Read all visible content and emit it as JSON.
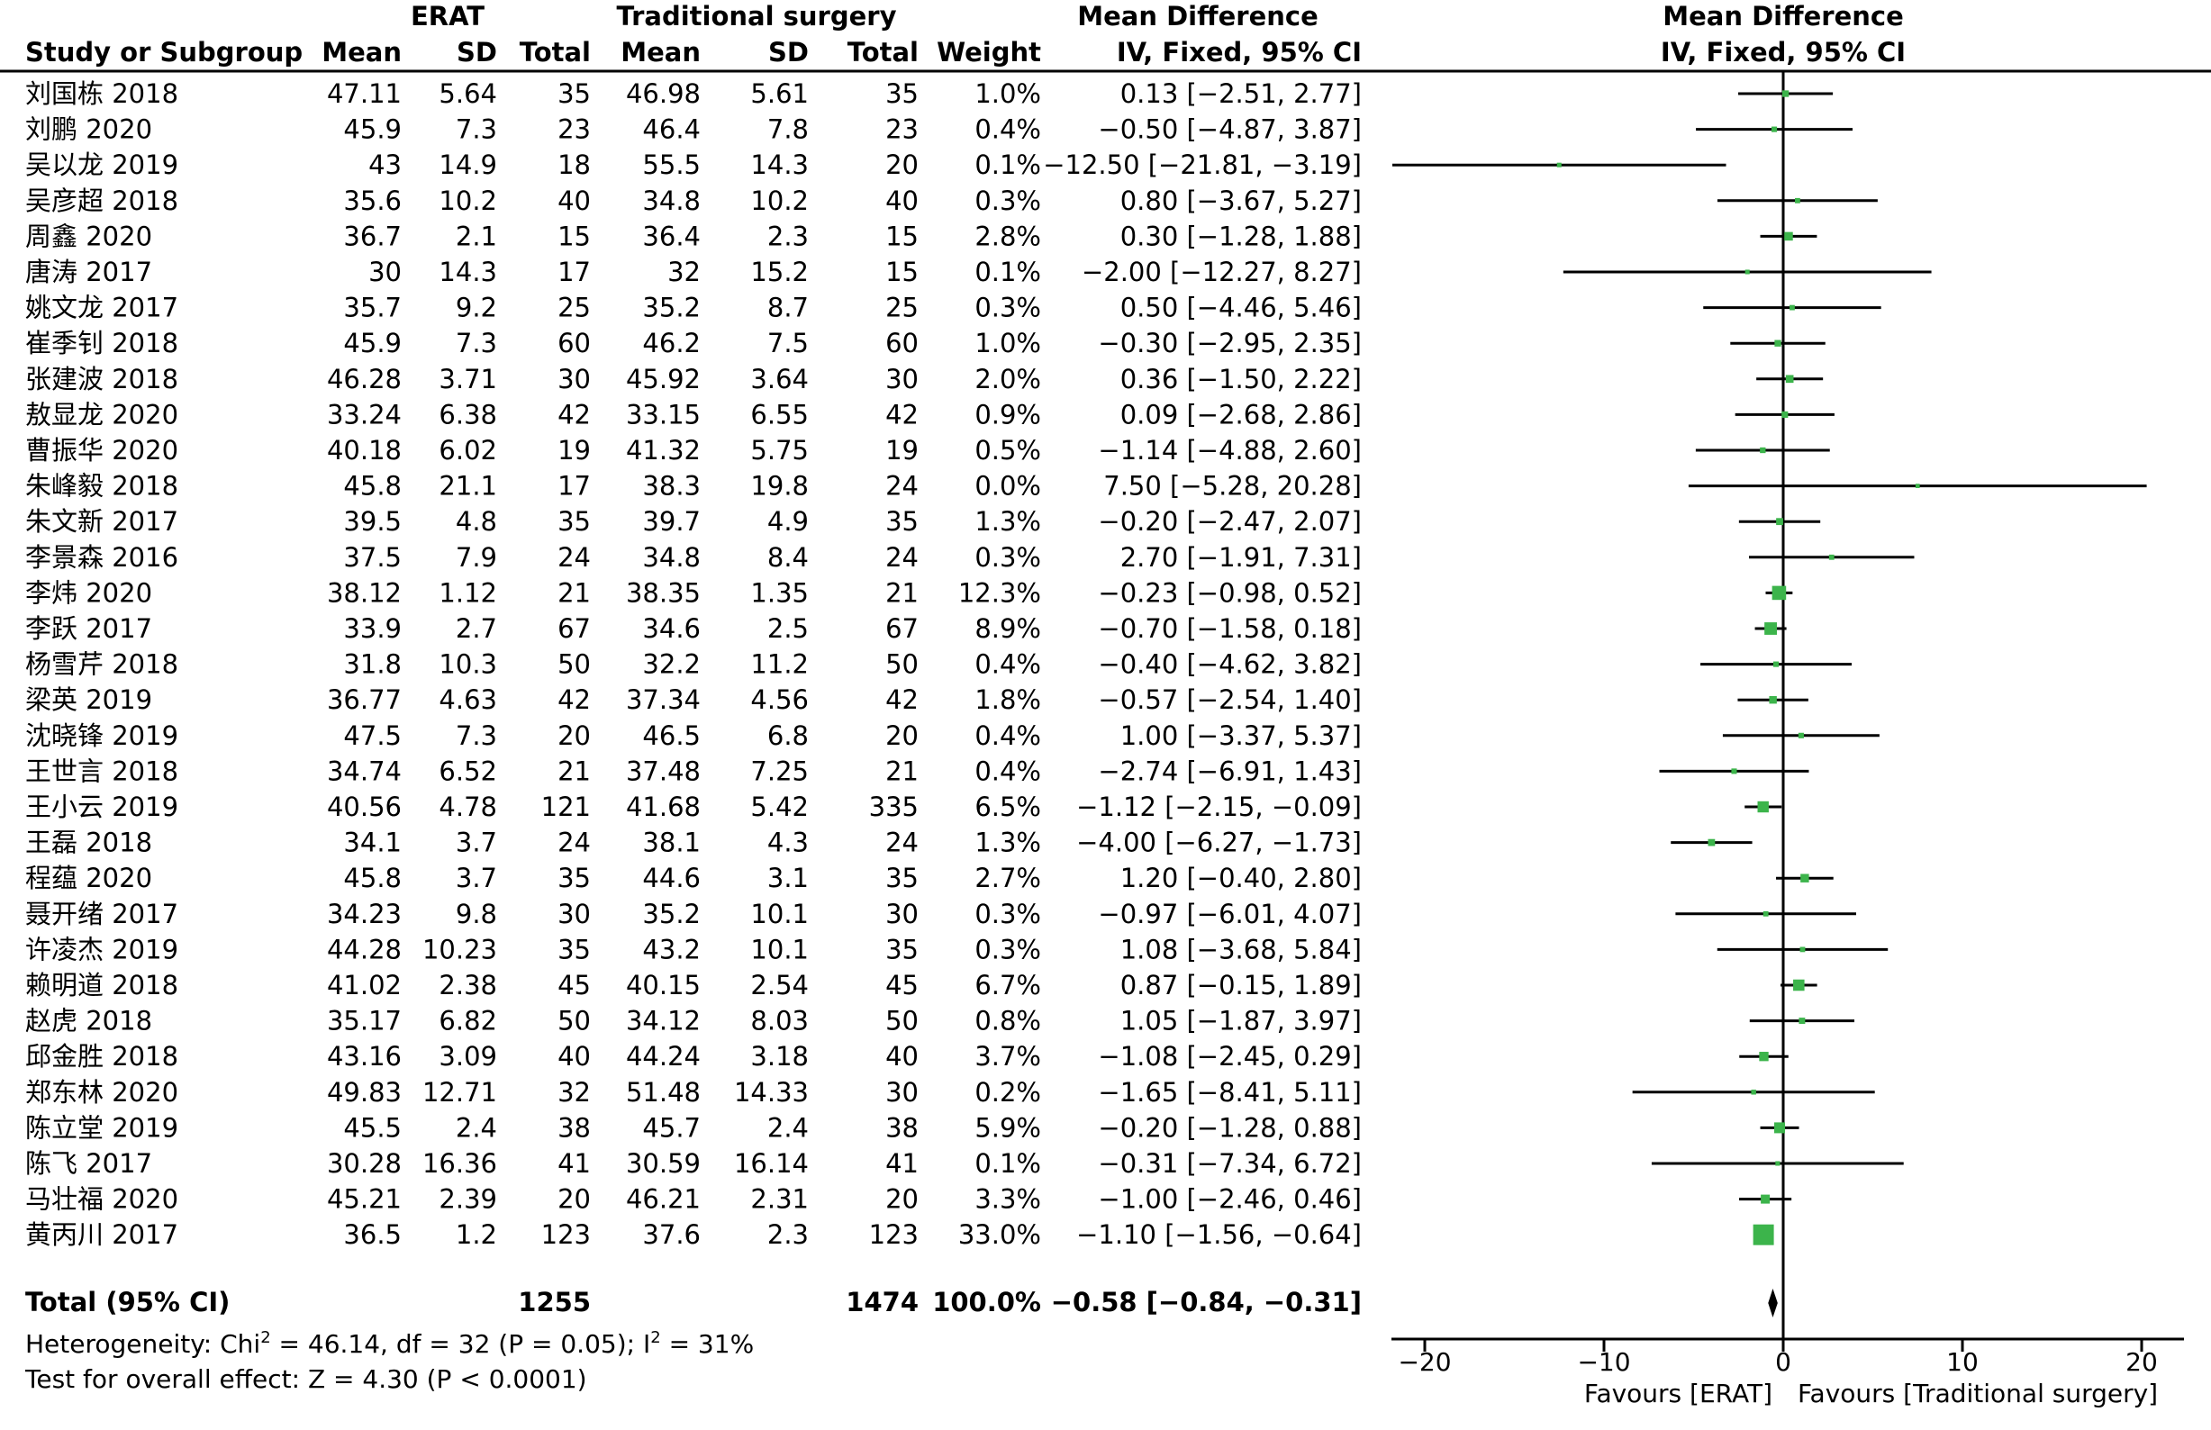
{
  "chart_data": {
    "type": "forest",
    "groups": {
      "experimental": "ERAT",
      "control": "Traditional surgery",
      "effect_measure": "Mean Difference"
    },
    "columns": {
      "study": "Study or Subgroup",
      "mean": "Mean",
      "sd": "SD",
      "total": "Total",
      "weight": "Weight",
      "method": "IV, Fixed, 95% CI"
    },
    "studies": [
      {
        "name": "刘国栋 2018",
        "e_mean": "47.11",
        "e_sd": "5.64",
        "e_total": "35",
        "c_mean": "46.98",
        "c_sd": "5.61",
        "c_total": "35",
        "weight": "1.0%",
        "ci_text": "0.13 [−2.51, 2.77]",
        "md": 0.13,
        "lo": -2.51,
        "hi": 2.77,
        "w": 1.0
      },
      {
        "name": "刘鹏 2020",
        "e_mean": "45.9",
        "e_sd": "7.3",
        "e_total": "23",
        "c_mean": "46.4",
        "c_sd": "7.8",
        "c_total": "23",
        "weight": "0.4%",
        "ci_text": "−0.50 [−4.87, 3.87]",
        "md": -0.5,
        "lo": -4.87,
        "hi": 3.87,
        "w": 0.4
      },
      {
        "name": "吴以龙 2019",
        "e_mean": "43",
        "e_sd": "14.9",
        "e_total": "18",
        "c_mean": "55.5",
        "c_sd": "14.3",
        "c_total": "20",
        "weight": "0.1%",
        "ci_text": "−12.50 [−21.81, −3.19]",
        "md": -12.5,
        "lo": -21.81,
        "hi": -3.19,
        "w": 0.1
      },
      {
        "name": "吴彦超 2018",
        "e_mean": "35.6",
        "e_sd": "10.2",
        "e_total": "40",
        "c_mean": "34.8",
        "c_sd": "10.2",
        "c_total": "40",
        "weight": "0.3%",
        "ci_text": "0.80 [−3.67, 5.27]",
        "md": 0.8,
        "lo": -3.67,
        "hi": 5.27,
        "w": 0.3
      },
      {
        "name": "周鑫 2020",
        "e_mean": "36.7",
        "e_sd": "2.1",
        "e_total": "15",
        "c_mean": "36.4",
        "c_sd": "2.3",
        "c_total": "15",
        "weight": "2.8%",
        "ci_text": "0.30 [−1.28, 1.88]",
        "md": 0.3,
        "lo": -1.28,
        "hi": 1.88,
        "w": 2.8
      },
      {
        "name": "唐涛 2017",
        "e_mean": "30",
        "e_sd": "14.3",
        "e_total": "17",
        "c_mean": "32",
        "c_sd": "15.2",
        "c_total": "15",
        "weight": "0.1%",
        "ci_text": "−2.00 [−12.27, 8.27]",
        "md": -2.0,
        "lo": -12.27,
        "hi": 8.27,
        "w": 0.1
      },
      {
        "name": "姚文龙 2017",
        "e_mean": "35.7",
        "e_sd": "9.2",
        "e_total": "25",
        "c_mean": "35.2",
        "c_sd": "8.7",
        "c_total": "25",
        "weight": "0.3%",
        "ci_text": "0.50 [−4.46, 5.46]",
        "md": 0.5,
        "lo": -4.46,
        "hi": 5.46,
        "w": 0.3
      },
      {
        "name": "崔季钊 2018",
        "e_mean": "45.9",
        "e_sd": "7.3",
        "e_total": "60",
        "c_mean": "46.2",
        "c_sd": "7.5",
        "c_total": "60",
        "weight": "1.0%",
        "ci_text": "−0.30 [−2.95, 2.35]",
        "md": -0.3,
        "lo": -2.95,
        "hi": 2.35,
        "w": 1.0
      },
      {
        "name": "张建波 2018",
        "e_mean": "46.28",
        "e_sd": "3.71",
        "e_total": "30",
        "c_mean": "45.92",
        "c_sd": "3.64",
        "c_total": "30",
        "weight": "2.0%",
        "ci_text": "0.36 [−1.50, 2.22]",
        "md": 0.36,
        "lo": -1.5,
        "hi": 2.22,
        "w": 2.0
      },
      {
        "name": "敖显龙 2020",
        "e_mean": "33.24",
        "e_sd": "6.38",
        "e_total": "42",
        "c_mean": "33.15",
        "c_sd": "6.55",
        "c_total": "42",
        "weight": "0.9%",
        "ci_text": "0.09 [−2.68, 2.86]",
        "md": 0.09,
        "lo": -2.68,
        "hi": 2.86,
        "w": 0.9
      },
      {
        "name": "曹振华 2020",
        "e_mean": "40.18",
        "e_sd": "6.02",
        "e_total": "19",
        "c_mean": "41.32",
        "c_sd": "5.75",
        "c_total": "19",
        "weight": "0.5%",
        "ci_text": "−1.14 [−4.88, 2.60]",
        "md": -1.14,
        "lo": -4.88,
        "hi": 2.6,
        "w": 0.5
      },
      {
        "name": "朱峰毅 2018",
        "e_mean": "45.8",
        "e_sd": "21.1",
        "e_total": "17",
        "c_mean": "38.3",
        "c_sd": "19.8",
        "c_total": "24",
        "weight": "0.0%",
        "ci_text": "7.50 [−5.28, 20.28]",
        "md": 7.5,
        "lo": -5.28,
        "hi": 20.28,
        "w": 0.05
      },
      {
        "name": "朱文新 2017",
        "e_mean": "39.5",
        "e_sd": "4.8",
        "e_total": "35",
        "c_mean": "39.7",
        "c_sd": "4.9",
        "c_total": "35",
        "weight": "1.3%",
        "ci_text": "−0.20 [−2.47, 2.07]",
        "md": -0.2,
        "lo": -2.47,
        "hi": 2.07,
        "w": 1.3
      },
      {
        "name": "李景森 2016",
        "e_mean": "37.5",
        "e_sd": "7.9",
        "e_total": "24",
        "c_mean": "34.8",
        "c_sd": "8.4",
        "c_total": "24",
        "weight": "0.3%",
        "ci_text": "2.70 [−1.91, 7.31]",
        "md": 2.7,
        "lo": -1.91,
        "hi": 7.31,
        "w": 0.3
      },
      {
        "name": "李炜 2020",
        "e_mean": "38.12",
        "e_sd": "1.12",
        "e_total": "21",
        "c_mean": "38.35",
        "c_sd": "1.35",
        "c_total": "21",
        "weight": "12.3%",
        "ci_text": "−0.23 [−0.98, 0.52]",
        "md": -0.23,
        "lo": -0.98,
        "hi": 0.52,
        "w": 12.3
      },
      {
        "name": "李跃 2017",
        "e_mean": "33.9",
        "e_sd": "2.7",
        "e_total": "67",
        "c_mean": "34.6",
        "c_sd": "2.5",
        "c_total": "67",
        "weight": "8.9%",
        "ci_text": "−0.70 [−1.58, 0.18]",
        "md": -0.7,
        "lo": -1.58,
        "hi": 0.18,
        "w": 8.9
      },
      {
        "name": "杨雪芹 2018",
        "e_mean": "31.8",
        "e_sd": "10.3",
        "e_total": "50",
        "c_mean": "32.2",
        "c_sd": "11.2",
        "c_total": "50",
        "weight": "0.4%",
        "ci_text": "−0.40 [−4.62, 3.82]",
        "md": -0.4,
        "lo": -4.62,
        "hi": 3.82,
        "w": 0.4
      },
      {
        "name": "梁英 2019",
        "e_mean": "36.77",
        "e_sd": "4.63",
        "e_total": "42",
        "c_mean": "37.34",
        "c_sd": "4.56",
        "c_total": "42",
        "weight": "1.8%",
        "ci_text": "−0.57 [−2.54, 1.40]",
        "md": -0.57,
        "lo": -2.54,
        "hi": 1.4,
        "w": 1.8
      },
      {
        "name": "沈晓锋 2019",
        "e_mean": "47.5",
        "e_sd": "7.3",
        "e_total": "20",
        "c_mean": "46.5",
        "c_sd": "6.8",
        "c_total": "20",
        "weight": "0.4%",
        "ci_text": "1.00 [−3.37, 5.37]",
        "md": 1.0,
        "lo": -3.37,
        "hi": 5.37,
        "w": 0.4
      },
      {
        "name": "王世言 2018",
        "e_mean": "34.74",
        "e_sd": "6.52",
        "e_total": "21",
        "c_mean": "37.48",
        "c_sd": "7.25",
        "c_total": "21",
        "weight": "0.4%",
        "ci_text": "−2.74 [−6.91, 1.43]",
        "md": -2.74,
        "lo": -6.91,
        "hi": 1.43,
        "w": 0.4
      },
      {
        "name": "王小云 2019",
        "e_mean": "40.56",
        "e_sd": "4.78",
        "e_total": "121",
        "c_mean": "41.68",
        "c_sd": "5.42",
        "c_total": "335",
        "weight": "6.5%",
        "ci_text": "−1.12 [−2.15, −0.09]",
        "md": -1.12,
        "lo": -2.15,
        "hi": -0.09,
        "w": 6.5
      },
      {
        "name": "王磊 2018",
        "e_mean": "34.1",
        "e_sd": "3.7",
        "e_total": "24",
        "c_mean": "38.1",
        "c_sd": "4.3",
        "c_total": "24",
        "weight": "1.3%",
        "ci_text": "−4.00 [−6.27, −1.73]",
        "md": -4.0,
        "lo": -6.27,
        "hi": -1.73,
        "w": 1.3
      },
      {
        "name": "程蕴 2020",
        "e_mean": "45.8",
        "e_sd": "3.7",
        "e_total": "35",
        "c_mean": "44.6",
        "c_sd": "3.1",
        "c_total": "35",
        "weight": "2.7%",
        "ci_text": "1.20 [−0.40, 2.80]",
        "md": 1.2,
        "lo": -0.4,
        "hi": 2.8,
        "w": 2.7
      },
      {
        "name": "聂开绪 2017",
        "e_mean": "34.23",
        "e_sd": "9.8",
        "e_total": "30",
        "c_mean": "35.2",
        "c_sd": "10.1",
        "c_total": "30",
        "weight": "0.3%",
        "ci_text": "−0.97 [−6.01, 4.07]",
        "md": -0.97,
        "lo": -6.01,
        "hi": 4.07,
        "w": 0.3
      },
      {
        "name": "许凌杰 2019",
        "e_mean": "44.28",
        "e_sd": "10.23",
        "e_total": "35",
        "c_mean": "43.2",
        "c_sd": "10.1",
        "c_total": "35",
        "weight": "0.3%",
        "ci_text": "1.08 [−3.68, 5.84]",
        "md": 1.08,
        "lo": -3.68,
        "hi": 5.84,
        "w": 0.3
      },
      {
        "name": "赖明道 2018",
        "e_mean": "41.02",
        "e_sd": "2.38",
        "e_total": "45",
        "c_mean": "40.15",
        "c_sd": "2.54",
        "c_total": "45",
        "weight": "6.7%",
        "ci_text": "0.87 [−0.15, 1.89]",
        "md": 0.87,
        "lo": -0.15,
        "hi": 1.89,
        "w": 6.7
      },
      {
        "name": "赵虎 2018",
        "e_mean": "35.17",
        "e_sd": "6.82",
        "e_total": "50",
        "c_mean": "34.12",
        "c_sd": "8.03",
        "c_total": "50",
        "weight": "0.8%",
        "ci_text": "1.05 [−1.87, 3.97]",
        "md": 1.05,
        "lo": -1.87,
        "hi": 3.97,
        "w": 0.8
      },
      {
        "name": "邱金胜 2018",
        "e_mean": "43.16",
        "e_sd": "3.09",
        "e_total": "40",
        "c_mean": "44.24",
        "c_sd": "3.18",
        "c_total": "40",
        "weight": "3.7%",
        "ci_text": "−1.08 [−2.45, 0.29]",
        "md": -1.08,
        "lo": -2.45,
        "hi": 0.29,
        "w": 3.7
      },
      {
        "name": "郑东林 2020",
        "e_mean": "49.83",
        "e_sd": "12.71",
        "e_total": "32",
        "c_mean": "51.48",
        "c_sd": "14.33",
        "c_total": "30",
        "weight": "0.2%",
        "ci_text": "−1.65 [−8.41, 5.11]",
        "md": -1.65,
        "lo": -8.41,
        "hi": 5.11,
        "w": 0.2
      },
      {
        "name": "陈立堂 2019",
        "e_mean": "45.5",
        "e_sd": "2.4",
        "e_total": "38",
        "c_mean": "45.7",
        "c_sd": "2.4",
        "c_total": "38",
        "weight": "5.9%",
        "ci_text": "−0.20 [−1.28, 0.88]",
        "md": -0.2,
        "lo": -1.28,
        "hi": 0.88,
        "w": 5.9
      },
      {
        "name": "陈飞 2017",
        "e_mean": "30.28",
        "e_sd": "16.36",
        "e_total": "41",
        "c_mean": "30.59",
        "c_sd": "16.14",
        "c_total": "41",
        "weight": "0.1%",
        "ci_text": "−0.31 [−7.34, 6.72]",
        "md": -0.31,
        "lo": -7.34,
        "hi": 6.72,
        "w": 0.1
      },
      {
        "name": "马壮福 2020",
        "e_mean": "45.21",
        "e_sd": "2.39",
        "e_total": "20",
        "c_mean": "46.21",
        "c_sd": "2.31",
        "c_total": "20",
        "weight": "3.3%",
        "ci_text": "−1.00 [−2.46, 0.46]",
        "md": -1.0,
        "lo": -2.46,
        "hi": 0.46,
        "w": 3.3
      },
      {
        "name": "黄丙川 2017",
        "e_mean": "36.5",
        "e_sd": "1.2",
        "e_total": "123",
        "c_mean": "37.6",
        "c_sd": "2.3",
        "c_total": "123",
        "weight": "33.0%",
        "ci_text": "−1.10 [−1.56, −0.64]",
        "md": -1.1,
        "lo": -1.56,
        "hi": -0.64,
        "w": 33.0
      }
    ],
    "total": {
      "label": "Total (95% CI)",
      "e_total": "1255",
      "c_total": "1474",
      "weight": "100.0%",
      "ci_text": "−0.58 [−0.84, −0.31]",
      "md": -0.58,
      "lo": -0.84,
      "hi": -0.31
    },
    "heterogeneity": {
      "prefix": "Heterogeneity: Chi",
      "sup1": "2",
      "mid": " = 46.14, df = 32 (P = 0.05); I",
      "sup2": "2",
      "suffix": " = 31%"
    },
    "overall_effect": "Test for overall effect: Z = 4.30 (P < 0.0001)",
    "x_axis": {
      "range": [
        -20,
        20
      ],
      "ticks": [
        -20,
        -10,
        0,
        10,
        20
      ],
      "tick_labels": [
        "−20",
        "−10",
        "0",
        "10",
        "20"
      ]
    },
    "favours_left": "Favours [ERAT]",
    "favours_right": "Favours [Traditional surgery]",
    "square_color": "#3cb44b",
    "diamond_color": "#000000"
  }
}
